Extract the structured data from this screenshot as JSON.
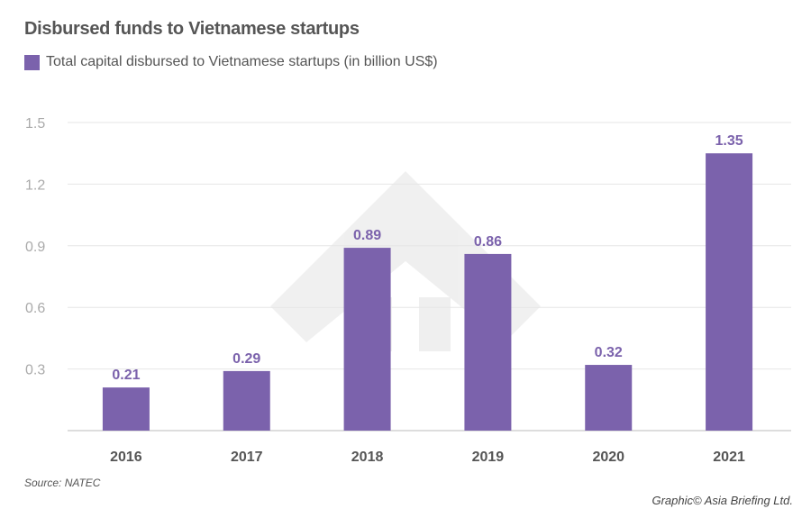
{
  "chart_data": {
    "type": "bar",
    "title": "Disbursed funds to Vietnamese startups",
    "legend": [
      "Total capital disbursed to Vietnamese startups (in billion US$)"
    ],
    "legend_position": "top-left",
    "categories": [
      "2016",
      "2017",
      "2018",
      "2019",
      "2020",
      "2021"
    ],
    "values": [
      0.21,
      0.29,
      0.89,
      0.86,
      0.32,
      1.35
    ],
    "data_labels": [
      "0.21",
      "0.29",
      "0.89",
      "0.86",
      "0.32",
      "1.35"
    ],
    "yticks": [
      "0.3",
      "0.6",
      "0.9",
      "1.2",
      "1.5"
    ],
    "ytick_values": [
      0.3,
      0.6,
      0.9,
      1.2,
      1.5
    ],
    "ylim": [
      0,
      1.5
    ],
    "xlabel": "",
    "ylabel": "",
    "grid": true,
    "color": "#7b62ac"
  },
  "footer": {
    "source": "Source: NATEC",
    "credit": "Graphic© Asia Briefing Ltd."
  }
}
